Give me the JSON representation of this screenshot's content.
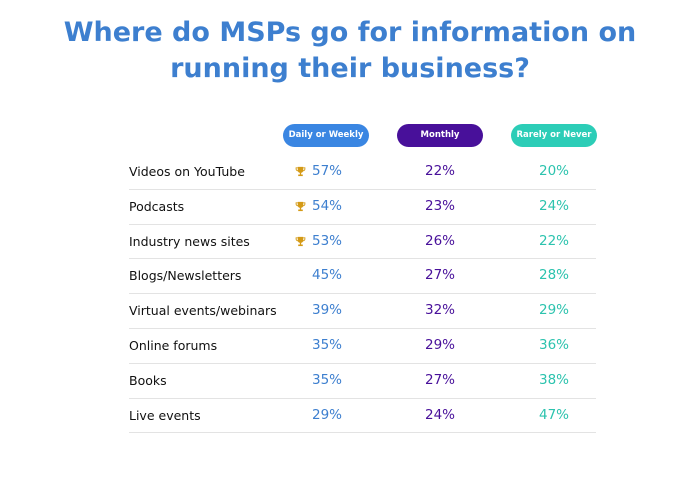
{
  "title": {
    "line1": "Where do MSPs go for information on",
    "line2": "running their business?"
  },
  "colors": {
    "title": "#3d7fcf",
    "daily_or_weekly": "#3a86e2",
    "monthly": "#48109a",
    "rarely_or_never": "#2ccdb7",
    "trophy": "#d49a16"
  },
  "chart_data": {
    "type": "table",
    "title": "Where do MSPs go for information on running their business?",
    "columns": [
      "Daily or Weekly",
      "Monthly",
      "Rarely or Never"
    ],
    "rows": [
      {
        "label": "Videos on YouTube",
        "values": [
          "57%",
          "22%",
          "20%"
        ],
        "trophy": true
      },
      {
        "label": "Podcasts",
        "values": [
          "54%",
          "23%",
          "24%"
        ],
        "trophy": true
      },
      {
        "label": "Industry news sites",
        "values": [
          "53%",
          "26%",
          "22%"
        ],
        "trophy": true
      },
      {
        "label": "Blogs/Newsletters",
        "values": [
          "45%",
          "27%",
          "28%"
        ],
        "trophy": false
      },
      {
        "label": "Virtual events/webinars",
        "values": [
          "39%",
          "32%",
          "29%"
        ],
        "trophy": false
      },
      {
        "label": "Online forums",
        "values": [
          "35%",
          "29%",
          "36%"
        ],
        "trophy": false
      },
      {
        "label": "Books",
        "values": [
          "35%",
          "27%",
          "38%"
        ],
        "trophy": false
      },
      {
        "label": "Live events",
        "values": [
          "29%",
          "24%",
          "47%"
        ],
        "trophy": false
      }
    ]
  }
}
